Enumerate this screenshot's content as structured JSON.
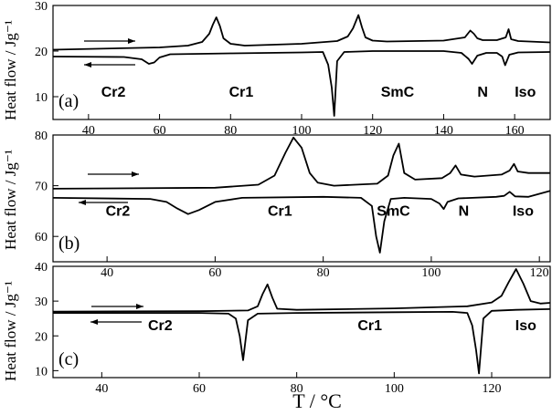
{
  "x_axis_label": "T / °C",
  "y_axis_label": "Heat flow / Jg⁻¹",
  "chart_data": [
    {
      "type": "line",
      "panel": "(a)",
      "xlim": [
        30,
        170
      ],
      "ylim": [
        5,
        30
      ],
      "xticks": [
        40,
        60,
        80,
        100,
        120,
        140,
        160
      ],
      "yticks": [
        10,
        20,
        30
      ],
      "phase_labels": [
        "Cr2",
        "Cr1",
        "SmC",
        "N",
        "Iso"
      ],
      "phase_label_x": [
        47,
        83,
        127,
        151,
        163
      ],
      "phase_label_y": 11,
      "series": [
        {
          "direction": "heating",
          "x": [
            30,
            60,
            68,
            72,
            74,
            75,
            76,
            77,
            78,
            80,
            84,
            100,
            110,
            113,
            114.5,
            116,
            117,
            118,
            120,
            124,
            140,
            146,
            147.5,
            148.5,
            149.5,
            151,
            155,
            157.5,
            158.3,
            159,
            161,
            170
          ],
          "y": [
            20.3,
            20.8,
            21.2,
            22.0,
            23.8,
            25.8,
            27.4,
            25.5,
            22.8,
            21.6,
            21.2,
            21.6,
            22.2,
            23.2,
            25.0,
            27.9,
            25.2,
            23.0,
            22.3,
            22.1,
            22.3,
            23.0,
            24.5,
            23.8,
            22.8,
            22.4,
            22.4,
            23.0,
            24.8,
            22.6,
            22.2,
            21.9
          ]
        },
        {
          "direction": "cooling",
          "x": [
            30,
            50,
            55,
            57,
            58.5,
            60,
            63,
            80,
            100,
            106,
            107.5,
            108.5,
            109.2,
            110,
            112,
            120,
            140,
            145,
            147,
            148,
            149.5,
            152,
            155,
            156.5,
            157.3,
            158.5,
            161,
            170
          ],
          "y": [
            18.8,
            18.7,
            18.2,
            17.2,
            17.5,
            18.6,
            19.3,
            19.5,
            19.7,
            19.8,
            17.0,
            12.0,
            5.8,
            17.8,
            19.8,
            20.0,
            20.0,
            19.6,
            18.3,
            17.2,
            19.0,
            19.6,
            19.6,
            18.8,
            16.9,
            19.2,
            19.7,
            19.8
          ]
        }
      ]
    },
    {
      "type": "line",
      "panel": "(b)",
      "xlim": [
        30,
        122
      ],
      "ylim": [
        55,
        80
      ],
      "xticks": [
        40,
        60,
        80,
        100,
        120
      ],
      "yticks": [
        60,
        70,
        80
      ],
      "phase_labels": [
        "Cr2",
        "Cr1",
        "SmC",
        "N",
        "Iso"
      ],
      "phase_label_x": [
        42,
        72,
        93,
        106,
        117
      ],
      "phase_label_y": 65,
      "series": [
        {
          "direction": "heating",
          "x": [
            30,
            60,
            68,
            71,
            73,
            74.5,
            76,
            77.5,
            79,
            82,
            90,
            92,
            93,
            94,
            95,
            97,
            102,
            103.5,
            104.5,
            105.5,
            108,
            113,
            114.5,
            115.3,
            116,
            118,
            122
          ],
          "y": [
            69.4,
            69.6,
            70.2,
            72.0,
            76.5,
            79.5,
            77.5,
            72.5,
            70.6,
            70.0,
            70.4,
            72.0,
            76.0,
            78.3,
            72.5,
            71.2,
            71.5,
            72.5,
            74.0,
            72.2,
            71.8,
            72.2,
            73.0,
            74.3,
            72.8,
            72.5,
            72.5
          ]
        },
        {
          "direction": "cooling",
          "x": [
            30,
            48,
            51,
            53,
            55,
            57,
            60,
            65,
            80,
            87,
            89,
            89.8,
            90.5,
            91.3,
            92.5,
            95,
            100,
            101.5,
            102.3,
            103,
            105,
            112,
            113.5,
            114.5,
            115.5,
            118,
            122
          ],
          "y": [
            67.6,
            67.4,
            66.8,
            65.5,
            64.4,
            65.2,
            66.8,
            67.6,
            67.8,
            67.6,
            66.0,
            60.0,
            56.8,
            63.0,
            67.4,
            67.6,
            67.4,
            66.5,
            65.4,
            66.8,
            67.5,
            67.8,
            68.0,
            68.8,
            67.9,
            67.8,
            69.0
          ]
        }
      ]
    },
    {
      "type": "line",
      "panel": "(c)",
      "xlim": [
        30,
        132
      ],
      "ylim": [
        8,
        40
      ],
      "xticks": [
        40,
        60,
        80,
        100,
        120
      ],
      "yticks": [
        10,
        20,
        30,
        40
      ],
      "phase_labels": [
        "Cr2",
        "Cr1",
        "Iso"
      ],
      "phase_label_x": [
        52,
        95,
        127
      ],
      "phase_label_y": 23,
      "series": [
        {
          "direction": "heating",
          "x": [
            30,
            60,
            70,
            72,
            73,
            74,
            75,
            76,
            80,
            100,
            115,
            120,
            122,
            123.5,
            125,
            126.5,
            128,
            130,
            132
          ],
          "y": [
            27.0,
            27.1,
            27.3,
            28.5,
            32.0,
            34.8,
            31.0,
            27.8,
            27.5,
            27.9,
            28.5,
            29.6,
            31.5,
            35.5,
            39.2,
            35.0,
            30.0,
            29.3,
            29.5
          ]
        },
        {
          "direction": "cooling",
          "x": [
            30,
            60,
            66,
            67.5,
            68.3,
            69,
            70,
            72,
            80,
            100,
            112,
            115,
            116,
            116.8,
            117.4,
            118.3,
            120,
            125,
            132
          ],
          "y": [
            26.6,
            26.6,
            26.4,
            25.0,
            20.0,
            13.0,
            24.5,
            26.4,
            26.6,
            26.8,
            26.9,
            26.6,
            23.0,
            16.0,
            9.2,
            25.0,
            27.2,
            27.5,
            27.7
          ]
        }
      ]
    }
  ]
}
